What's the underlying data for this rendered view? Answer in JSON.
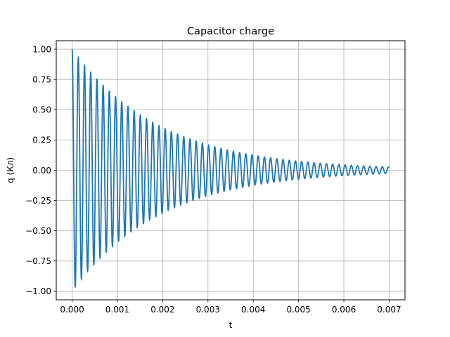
{
  "chart_data": {
    "type": "line",
    "title": "Capacitor charge",
    "xlabel": "t",
    "ylabel": "q (Кл)",
    "xlim": [
      -0.00035,
      0.00735
    ],
    "ylim": [
      -1.07,
      1.07
    ],
    "xticks": [
      0.0,
      0.001,
      0.002,
      0.003,
      0.004,
      0.005,
      0.006,
      0.007
    ],
    "xtick_labels": [
      "0.000",
      "0.001",
      "0.002",
      "0.003",
      "0.004",
      "0.005",
      "0.006",
      "0.007"
    ],
    "yticks": [
      -1.0,
      -0.75,
      -0.5,
      -0.25,
      0.0,
      0.25,
      0.5,
      0.75,
      1.0
    ],
    "ytick_labels": [
      "−1.00",
      "−0.75",
      "−0.50",
      "−0.25",
      "0.00",
      "0.25",
      "0.50",
      "0.75",
      "1.00"
    ],
    "grid": true,
    "series": [
      {
        "color": "#1f77b4",
        "model": "damped-cosine",
        "q0": 1.0,
        "decay_rate_per_s": 520,
        "frequency_hz": 7300,
        "t_range": [
          0,
          0.007
        ]
      }
    ]
  }
}
